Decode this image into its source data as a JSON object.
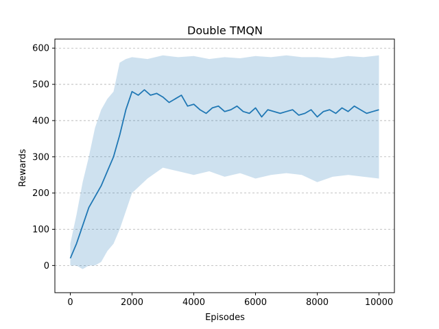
{
  "chart_data": {
    "type": "line",
    "title": "Double TMQN",
    "xlabel": "Episodes",
    "ylabel": "Rewards",
    "xlim": [
      -500,
      10500
    ],
    "ylim": [
      -75,
      625
    ],
    "xticks": [
      0,
      2000,
      4000,
      6000,
      8000,
      10000
    ],
    "yticks": [
      0,
      100,
      200,
      300,
      400,
      500,
      600
    ],
    "grid": {
      "y": true,
      "x": false,
      "style": "dashed"
    },
    "legend": "none",
    "colors": {
      "line": "#1f77b4",
      "band": "#1f77b4",
      "grid": "#b0b0b0",
      "spine": "#000000"
    },
    "series": [
      {
        "band_upper": {
          "x": [
            0,
            200,
            400,
            600,
            800,
            1000,
            1200,
            1400,
            1600,
            1800,
            2000,
            2500,
            3000,
            3500,
            4000,
            4500,
            5000,
            5500,
            6000,
            6500,
            7000,
            7500,
            8000,
            8500,
            9000,
            9500,
            10000
          ],
          "y": [
            60,
            140,
            230,
            300,
            380,
            430,
            460,
            480,
            560,
            570,
            575,
            570,
            580,
            575,
            578,
            570,
            575,
            572,
            578,
            575,
            580,
            575,
            575,
            572,
            578,
            575,
            580
          ]
        },
        "band_lower": {
          "x": [
            0,
            200,
            400,
            600,
            800,
            1000,
            1200,
            1400,
            1600,
            1800,
            2000,
            2500,
            3000,
            3500,
            4000,
            4500,
            5000,
            5500,
            6000,
            6500,
            7000,
            7500,
            8000,
            8500,
            9000,
            9500,
            10000
          ],
          "y": [
            0,
            0,
            -10,
            0,
            0,
            10,
            40,
            60,
            100,
            150,
            200,
            240,
            270,
            260,
            250,
            260,
            245,
            255,
            240,
            250,
            255,
            250,
            230,
            245,
            250,
            245,
            240
          ]
        },
        "mean": {
          "x": [
            0,
            200,
            400,
            600,
            800,
            1000,
            1200,
            1400,
            1600,
            1800,
            2000,
            2200,
            2400,
            2600,
            2800,
            3000,
            3200,
            3400,
            3600,
            3800,
            4000,
            4200,
            4400,
            4600,
            4800,
            5000,
            5200,
            5400,
            5600,
            5800,
            6000,
            6200,
            6400,
            6600,
            6800,
            7000,
            7200,
            7400,
            7600,
            7800,
            8000,
            8200,
            8400,
            8600,
            8800,
            9000,
            9200,
            9400,
            9600,
            9800,
            10000
          ],
          "y": [
            20,
            60,
            110,
            160,
            190,
            220,
            260,
            300,
            360,
            430,
            480,
            470,
            485,
            470,
            475,
            465,
            450,
            460,
            470,
            440,
            445,
            430,
            420,
            435,
            440,
            425,
            430,
            440,
            425,
            420,
            435,
            410,
            430,
            425,
            420,
            425,
            430,
            415,
            420,
            430,
            410,
            425,
            430,
            420,
            435,
            425,
            440,
            430,
            420,
            425,
            430
          ]
        }
      }
    ]
  }
}
